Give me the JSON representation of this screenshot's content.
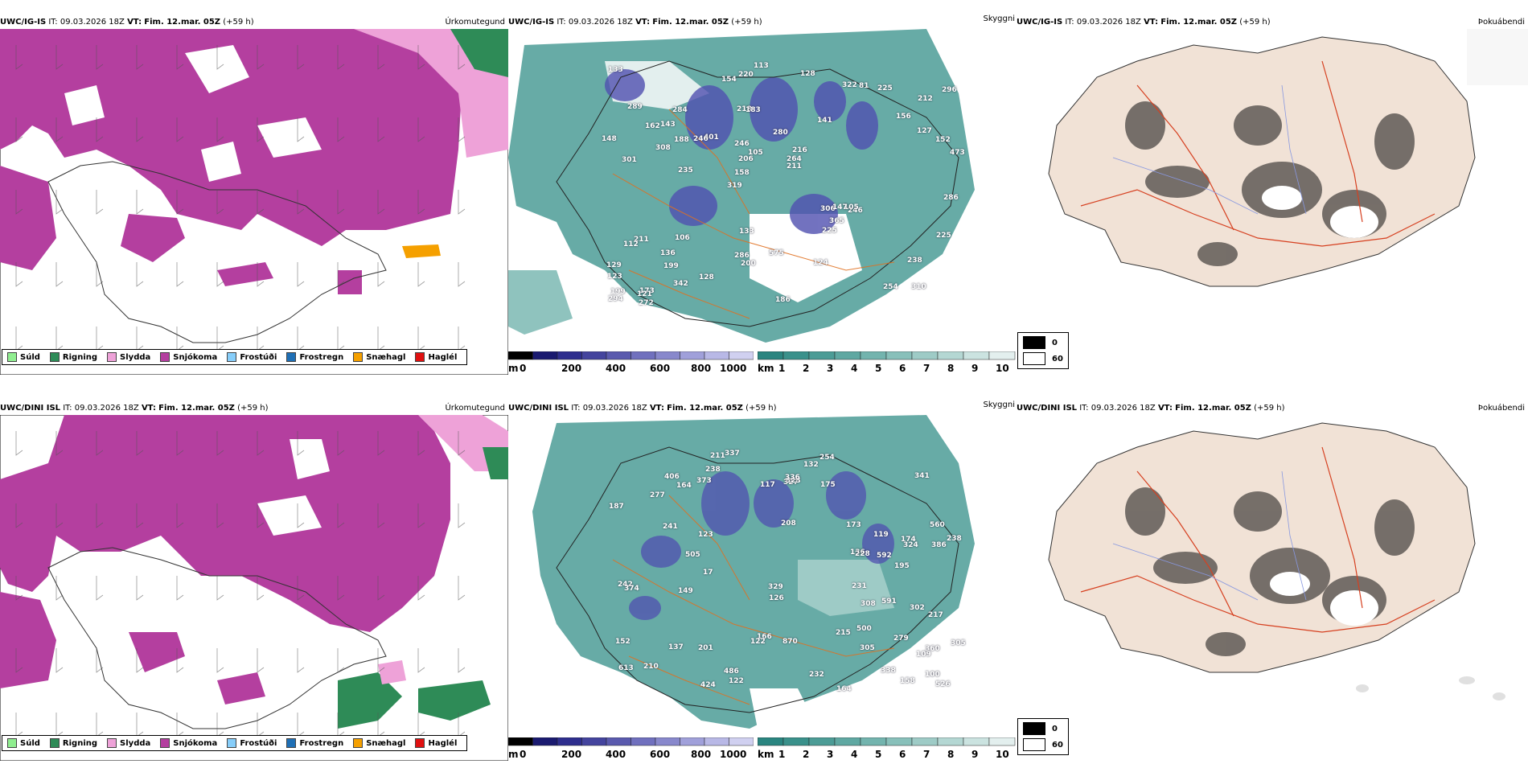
{
  "rows": [
    {
      "model": "UWC/IG-IS",
      "it_label": "IT:",
      "it_value": "09.03.2026 18Z",
      "vt_label": "VT:",
      "vt_value": "Fim. 12.mar. 05Z",
      "lead": "(+59 h)"
    },
    {
      "model": "UWC/DINI ISL",
      "it_label": "IT:",
      "it_value": "09.03.2026 18Z",
      "vt_label": "VT:",
      "vt_value": "Fim. 12.mar. 05Z",
      "lead": "(+59 h)"
    }
  ],
  "products": {
    "precip": "Úrkomutegund",
    "visibility": "Skyggni",
    "fog": "Þokuábendi"
  },
  "precip_legend": [
    {
      "label": "Súld",
      "color": "#90ee90"
    },
    {
      "label": "Rigning",
      "color": "#2e8b57"
    },
    {
      "label": "Slydda",
      "color": "#eea2d8"
    },
    {
      "label": "Snjókoma",
      "color": "#b43f9f"
    },
    {
      "label": "Frostúði",
      "color": "#87cefa"
    },
    {
      "label": "Frostregn",
      "color": "#1f6fb5"
    },
    {
      "label": "Snæhagl",
      "color": "#f5a000"
    },
    {
      "label": "Haglél",
      "color": "#e01010"
    }
  ],
  "cloudbase_scale": {
    "unit": "m",
    "ticks": [
      "0",
      "200",
      "400",
      "600",
      "800",
      "1000"
    ],
    "colors": [
      "#000000",
      "#1a1a70",
      "#2e2e8e",
      "#44449e",
      "#5a5aae",
      "#7070be",
      "#8888cc",
      "#a0a0da",
      "#b8b8e6",
      "#d0d0f0"
    ]
  },
  "visibility_scale": {
    "unit": "km",
    "ticks": [
      "1",
      "2",
      "3",
      "4",
      "5",
      "6",
      "7",
      "8",
      "9",
      "10"
    ],
    "colors": [
      "#2a8580",
      "#3a918b",
      "#4c9c96",
      "#5fa8a2",
      "#73b4ae",
      "#88c0ba",
      "#9ecbc6",
      "#b4d7d3",
      "#cbe3e0",
      "#e3efee"
    ]
  },
  "fog_legend": [
    {
      "label": "0",
      "color": "#000000"
    },
    {
      "label": "60",
      "color": "#ffffff"
    }
  ],
  "cloud_labels_top": [
    "310",
    "301",
    "212",
    "319",
    "141",
    "173",
    "218",
    "280",
    "211",
    "401",
    "123",
    "199",
    "183",
    "216",
    "246",
    "289",
    "220",
    "473",
    "306",
    "127",
    "158",
    "286",
    "206",
    "284",
    "322",
    "106",
    "254",
    "238",
    "105",
    "186",
    "246",
    "308",
    "225",
    "342",
    "152",
    "264",
    "199",
    "200",
    "211",
    "112",
    "156",
    "296",
    "365",
    "124",
    "136",
    "272",
    "294",
    "575",
    "225",
    "113",
    "235",
    "148",
    "143",
    "81",
    "121",
    "128",
    "154",
    "105",
    "225",
    "133",
    "128",
    "147",
    "188",
    "129",
    "133",
    "162",
    "286",
    "246"
  ],
  "cloud_labels_bottom": [
    "279",
    "560",
    "360",
    "208",
    "613",
    "238",
    "174",
    "201",
    "341",
    "241",
    "386",
    "187",
    "195",
    "122",
    "152",
    "277",
    "109",
    "373",
    "166",
    "324",
    "242",
    "374",
    "232",
    "136",
    "486",
    "122",
    "132",
    "175",
    "173",
    "305",
    "149",
    "305",
    "424",
    "329",
    "302",
    "338",
    "228",
    "117",
    "158",
    "17",
    "591",
    "592",
    "327",
    "505",
    "217",
    "308",
    "210",
    "254",
    "123",
    "119",
    "137",
    "126",
    "323",
    "238",
    "215",
    "231",
    "211",
    "406",
    "164",
    "336",
    "337",
    "500",
    "526",
    "870",
    "164",
    "100"
  ]
}
